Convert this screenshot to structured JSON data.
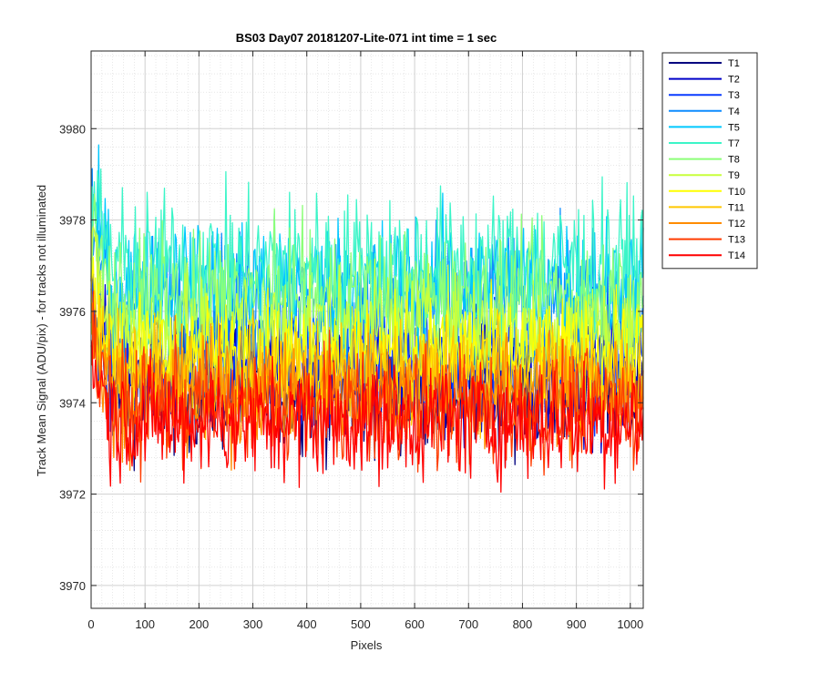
{
  "chart_data": {
    "type": "line",
    "title": "BS03 Day07 20181207-Lite-071 int time = 1 sec",
    "xlabel": "Pixels",
    "ylabel": "Track Mean Signal (ADU/pix) - for tracks not illuminated",
    "xlim": [
      0,
      1024
    ],
    "ylim": [
      3969.5,
      3981.7
    ],
    "xticks": [
      0,
      100,
      200,
      300,
      400,
      500,
      600,
      700,
      800,
      900,
      1000
    ],
    "yticks": [
      3970,
      3972,
      3974,
      3976,
      3978,
      3980
    ],
    "grid": true,
    "minor_grid": true,
    "legend_position": "outside-right",
    "series": [
      {
        "name": "T1",
        "color": "#00007f",
        "mean": 3974.3,
        "spread": 1.3
      },
      {
        "name": "T2",
        "color": "#0000c8",
        "mean": 3974.6,
        "spread": 1.3
      },
      {
        "name": "T3",
        "color": "#0a3cff",
        "mean": 3975.0,
        "spread": 1.3
      },
      {
        "name": "T4",
        "color": "#0d8cff",
        "mean": 3976.2,
        "spread": 1.4
      },
      {
        "name": "T5",
        "color": "#00c8ff",
        "mean": 3976.6,
        "spread": 1.4
      },
      {
        "name": "T7",
        "color": "#3cf5c8",
        "mean": 3977.0,
        "spread": 1.5
      },
      {
        "name": "T8",
        "color": "#8cff78",
        "mean": 3976.3,
        "spread": 1.3
      },
      {
        "name": "T9",
        "color": "#c8ff3c",
        "mean": 3975.6,
        "spread": 1.2
      },
      {
        "name": "T10",
        "color": "#ffff00",
        "mean": 3975.0,
        "spread": 1.2
      },
      {
        "name": "T11",
        "color": "#ffc800",
        "mean": 3974.6,
        "spread": 1.2
      },
      {
        "name": "T12",
        "color": "#ff8c00",
        "mean": 3974.2,
        "spread": 1.2
      },
      {
        "name": "T13",
        "color": "#ff3c00",
        "mean": 3973.9,
        "spread": 1.2
      },
      {
        "name": "T14",
        "color": "#ff0000",
        "mean": 3973.6,
        "spread": 1.2
      }
    ]
  }
}
